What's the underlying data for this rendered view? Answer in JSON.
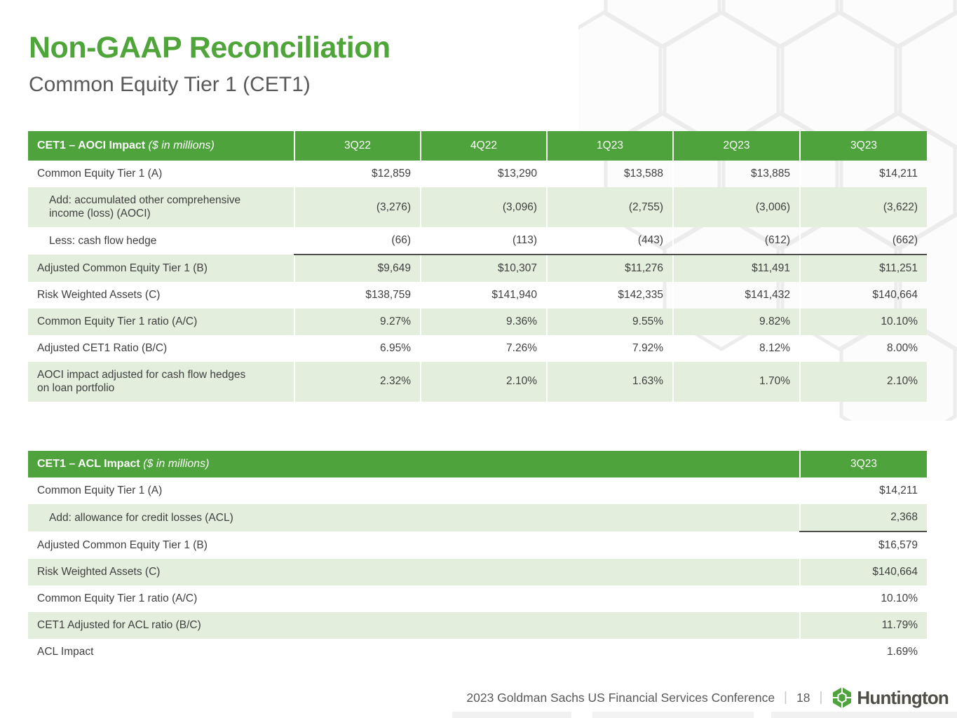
{
  "slide": {
    "title": "Non-GAAP Reconciliation",
    "subtitle": "Common Equity Tier 1 (CET1)"
  },
  "colors": {
    "header_green": "#4EA33C",
    "row_light_green": "#E3EEDC",
    "title_green": "#4FA53A",
    "body_text": "#3F3F3F",
    "footer_text": "#595959"
  },
  "table1": {
    "title": "CET1 – AOCI Impact",
    "title_suffix": "($ in millions)",
    "columns": [
      "3Q22",
      "4Q22",
      "1Q23",
      "2Q23",
      "3Q23"
    ],
    "rows": [
      {
        "label": "Common Equity Tier 1 (A)",
        "indent": false,
        "rule_below": false,
        "values": [
          "$12,859",
          "$13,290",
          "$13,588",
          "$13,885",
          "$14,211"
        ]
      },
      {
        "label": "Add: accumulated other comprehensive\nincome (loss) (AOCI)",
        "indent": true,
        "rule_below": false,
        "values": [
          "(3,276)",
          "(3,096)",
          "(2,755)",
          "(3,006)",
          "(3,622)"
        ]
      },
      {
        "label": "Less: cash flow hedge",
        "indent": true,
        "rule_below": true,
        "values": [
          "(66)",
          "(113)",
          "(443)",
          "(612)",
          "(662)"
        ]
      },
      {
        "label": "Adjusted Common Equity Tier 1 (B)",
        "indent": false,
        "rule_below": false,
        "values": [
          "$9,649",
          "$10,307",
          "$11,276",
          "$11,491",
          "$11,251"
        ]
      },
      {
        "label": "Risk Weighted Assets (C)",
        "indent": false,
        "rule_below": false,
        "values": [
          "$138,759",
          "$141,940",
          "$142,335",
          "$141,432",
          "$140,664"
        ]
      },
      {
        "label": "Common Equity Tier 1 ratio (A/C)",
        "indent": false,
        "rule_below": false,
        "values": [
          "9.27%",
          "9.36%",
          "9.55%",
          "9.82%",
          "10.10%"
        ]
      },
      {
        "label": "Adjusted CET1 Ratio (B/C)",
        "indent": false,
        "rule_below": false,
        "values": [
          "6.95%",
          "7.26%",
          "7.92%",
          "8.12%",
          "8.00%"
        ]
      },
      {
        "label": "AOCI impact adjusted for cash flow hedges\non loan portfolio",
        "indent": false,
        "rule_below": false,
        "values": [
          "2.32%",
          "2.10%",
          "1.63%",
          "1.70%",
          "2.10%"
        ]
      }
    ]
  },
  "table2": {
    "title": "CET1 – ACL Impact",
    "title_suffix": "($ in millions)",
    "columns": [
      "3Q23"
    ],
    "rows": [
      {
        "label": "Common Equity Tier 1 (A)",
        "indent": false,
        "rule_below": false,
        "values": [
          "$14,211"
        ]
      },
      {
        "label": "Add: allowance for credit losses (ACL)",
        "indent": true,
        "rule_below": true,
        "values": [
          "2,368"
        ]
      },
      {
        "label": "Adjusted Common Equity Tier 1 (B)",
        "indent": false,
        "rule_below": false,
        "values": [
          "$16,579"
        ]
      },
      {
        "label": "Risk Weighted Assets (C)",
        "indent": false,
        "rule_below": false,
        "values": [
          "$140,664"
        ]
      },
      {
        "label": "Common Equity Tier 1 ratio (A/C)",
        "indent": false,
        "rule_below": false,
        "values": [
          "10.10%"
        ]
      },
      {
        "label": "CET1 Adjusted for ACL ratio (B/C)",
        "indent": false,
        "rule_below": false,
        "values": [
          "11.79%"
        ]
      },
      {
        "label": "ACL Impact",
        "indent": false,
        "rule_below": false,
        "values": [
          "1.69%"
        ]
      }
    ]
  },
  "footer": {
    "conference": "2023 Goldman Sachs US Financial Services Conference",
    "separator": "|",
    "page_number": "18",
    "brand": "Huntington",
    "brand_icon": "huntington-honeycomb-logo"
  }
}
